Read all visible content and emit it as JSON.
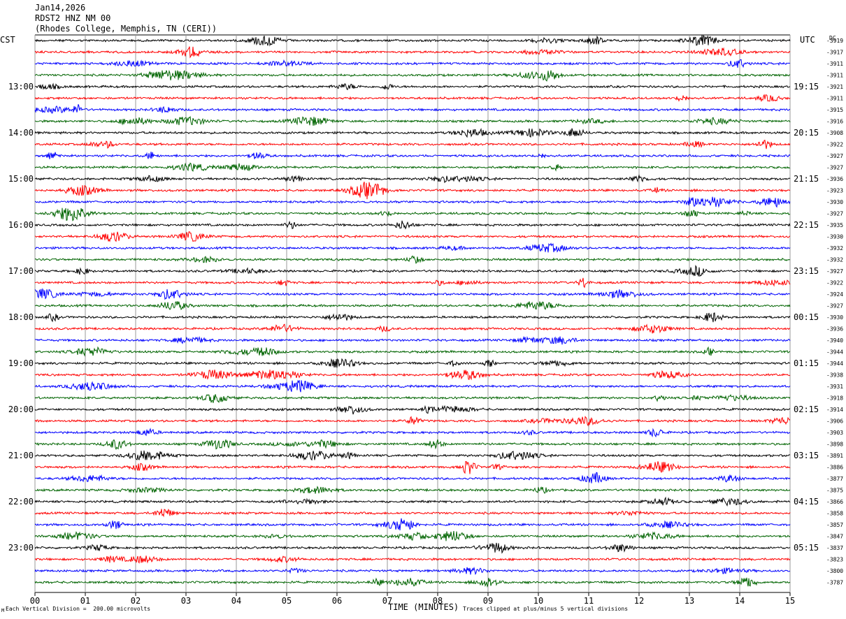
{
  "header": {
    "date": "Jan14,2026",
    "station": "RDST2 HNZ NM 00",
    "location": "(Rhodes College, Memphis, TN (CERI))"
  },
  "left_timezone": "CST",
  "right_timezone": "UTC",
  "dc_header": "DC",
  "footer": {
    "scale_note": "Each Vertical Division =  200.00 microvolts",
    "clip_note": "Traces clipped at plus/minus 5 vertical divisions",
    "corner_mark": "M"
  },
  "colors": {
    "cycle": [
      "#000000",
      "#ff0000",
      "#0000ff",
      "#006400"
    ],
    "grid": "#999999"
  },
  "chart_data": {
    "type": "line",
    "title": "",
    "xlabel": "TIME (MINUTES)",
    "ylabel": "",
    "x_ticks": [
      "00",
      "01",
      "02",
      "03",
      "04",
      "05",
      "06",
      "07",
      "08",
      "09",
      "10",
      "11",
      "12",
      "13",
      "14",
      "15"
    ],
    "xlim": [
      0,
      15
    ],
    "grid": true,
    "trace_count": 48,
    "minutes_per_trace": 15,
    "left_hour_labels": [
      "13:00",
      "14:00",
      "15:00",
      "16:00",
      "17:00",
      "18:00",
      "19:00",
      "20:00",
      "21:00",
      "22:00",
      "23:00"
    ],
    "right_hour_labels": [
      "19:15",
      "20:15",
      "21:15",
      "22:15",
      "23:15",
      "00:15",
      "01:15",
      "02:15",
      "03:15",
      "04:15",
      "05:15"
    ],
    "dc_offsets": [
      "-3919",
      "-3917",
      "-3911",
      "-3911",
      "-3921",
      "-3911",
      "-3915",
      "-3916",
      "-3908",
      "-3922",
      "-3927",
      "-3927",
      "-3936",
      "-3923",
      "-3930",
      "-3927",
      "-3935",
      "-3930",
      "-3932",
      "-3932",
      "-3927",
      "-3922",
      "-3924",
      "-3927",
      "-3930",
      "-3936",
      "-3940",
      "-3944",
      "-3944",
      "-3938",
      "-3931",
      "-3918",
      "-3914",
      "-3906",
      "-3903",
      "-3898",
      "-3891",
      "-3886",
      "-3877",
      "-3875",
      "-3866",
      "-3858",
      "-3857",
      "-3847",
      "-3837",
      "-3823",
      "-3800",
      "-3787"
    ]
  }
}
